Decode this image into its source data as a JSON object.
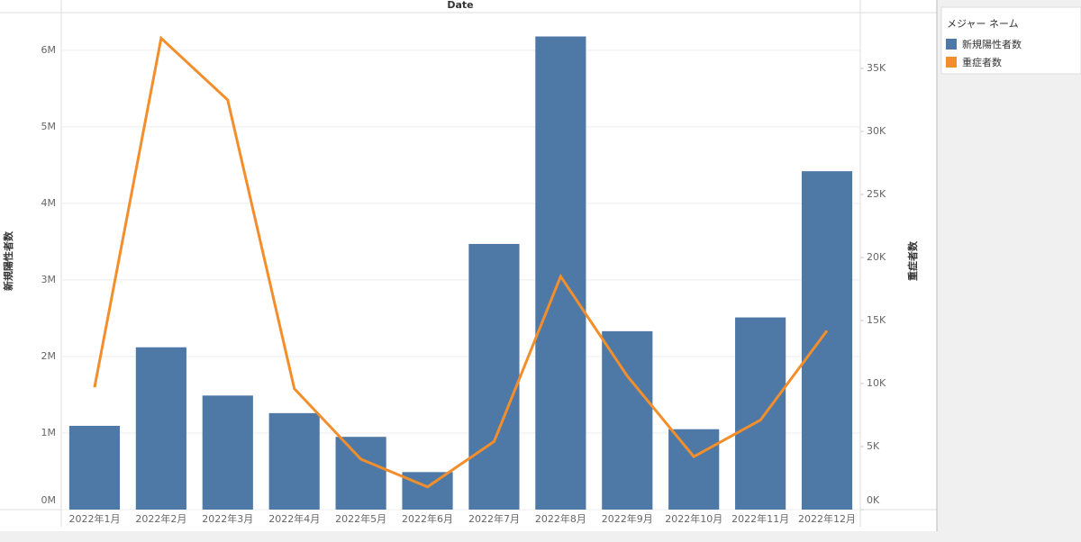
{
  "chart_data": {
    "type": "bar-line",
    "x_title": "Date",
    "y_title": "新規陽性者数",
    "y2_title": "重症者数",
    "legend_title": "メジャー ネーム",
    "categories": [
      "2022年1月",
      "2022年2月",
      "2022年3月",
      "2022年4月",
      "2022年5月",
      "2022年6月",
      "2022年7月",
      "2022年8月",
      "2022年9月",
      "2022年10月",
      "2022年11月",
      "2022年12月"
    ],
    "series": [
      {
        "name": "新規陽性者数",
        "type": "bar",
        "color": "#4e79a7",
        "values": [
          1094000,
          2120000,
          1490000,
          1260000,
          950000,
          490000,
          3470000,
          6180000,
          2330000,
          1050000,
          2510000,
          4420000
        ]
      },
      {
        "name": "重症者数",
        "type": "line",
        "axis": "y2",
        "color": "#f28e2b",
        "values": [
          9700,
          37400,
          32500,
          9600,
          4000,
          1800,
          5400,
          18500,
          10600,
          4200,
          7100,
          14200
        ]
      }
    ],
    "ylim": [
      0,
      6480000
    ],
    "yticks": [
      {
        "value": 0,
        "label": "0M"
      },
      {
        "value": 1000000,
        "label": "1M"
      },
      {
        "value": 2000000,
        "label": "2M"
      },
      {
        "value": 3000000,
        "label": "3M"
      },
      {
        "value": 4000000,
        "label": "4M"
      },
      {
        "value": 5000000,
        "label": "5M"
      },
      {
        "value": 6000000,
        "label": "6M"
      }
    ],
    "y2lim": [
      0,
      39360
    ],
    "y2ticks": [
      {
        "value": 0,
        "label": "0K"
      },
      {
        "value": 5000,
        "label": "5K"
      },
      {
        "value": 10000,
        "label": "10K"
      },
      {
        "value": 15000,
        "label": "15K"
      },
      {
        "value": 20000,
        "label": "20K"
      },
      {
        "value": 25000,
        "label": "25K"
      },
      {
        "value": 30000,
        "label": "30K"
      },
      {
        "value": 35000,
        "label": "35K"
      }
    ],
    "grid": true
  }
}
